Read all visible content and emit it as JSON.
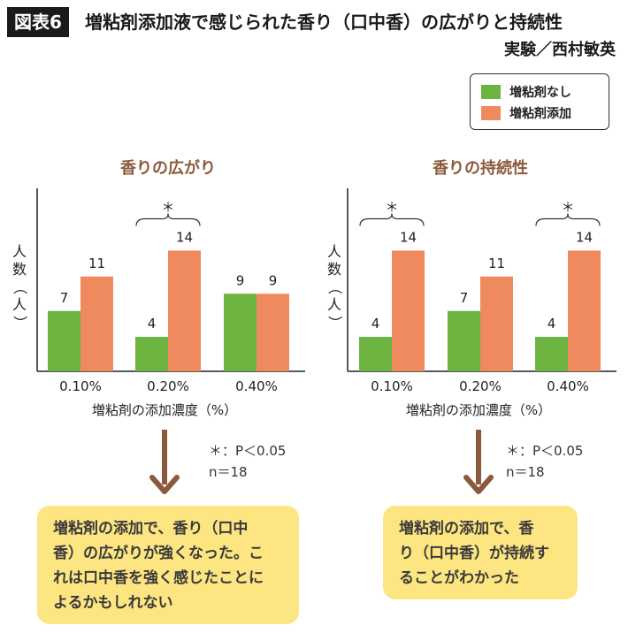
{
  "header": {
    "tag": "図表6",
    "title": "増粘剤添加液で感じられた香り（口中香）の広がりと持続性",
    "credit": "実験／西村敏英"
  },
  "legend": [
    {
      "label": "増粘剤なし",
      "color": "#6db33f"
    },
    {
      "label": "増粘剤添加",
      "color": "#ef8a5f"
    }
  ],
  "chart_data": [
    {
      "type": "bar",
      "title": "香りの広がり",
      "ylabel": "人数（人）",
      "xlabel": "増粘剤の添加濃度（%）",
      "categories": [
        "0.10%",
        "0.20%",
        "0.40%"
      ],
      "series": [
        {
          "name": "増粘剤なし",
          "values": [
            7,
            4,
            9
          ]
        },
        {
          "name": "増粘剤添加",
          "values": [
            11,
            14,
            9
          ]
        }
      ],
      "significance": [
        "",
        "＊",
        ""
      ],
      "ylim": [
        0,
        18
      ]
    },
    {
      "type": "bar",
      "title": "香りの持続性",
      "ylabel": "人数（人）",
      "xlabel": "増粘剤の添加濃度（%）",
      "categories": [
        "0.10%",
        "0.20%",
        "0.40%"
      ],
      "series": [
        {
          "name": "増粘剤なし",
          "values": [
            4,
            7,
            4
          ]
        },
        {
          "name": "増粘剤添加",
          "values": [
            14,
            11,
            14
          ]
        }
      ],
      "significance": [
        "＊",
        "",
        "＊"
      ],
      "ylim": [
        0,
        18
      ]
    }
  ],
  "notes": {
    "left": {
      "line1": "＊：P＜0.05",
      "line2": "n＝18"
    },
    "right": {
      "line1": "＊：P＜0.05",
      "line2": "n＝18"
    }
  },
  "callouts": {
    "left": [
      "増粘剤の添加で、香り（口中",
      "香）の広がりが強くなった。こ",
      "れは口中香を強く感じたことに",
      "よるかもしれない"
    ],
    "right": [
      "増粘剤の添加で、香",
      "り（口中香）が持続す",
      "ることがわかった"
    ]
  },
  "colors": {
    "arrow": "#8b5a3c",
    "axis": "#222222",
    "title": "#8b5a3c",
    "callout_bg": "#fde682"
  }
}
